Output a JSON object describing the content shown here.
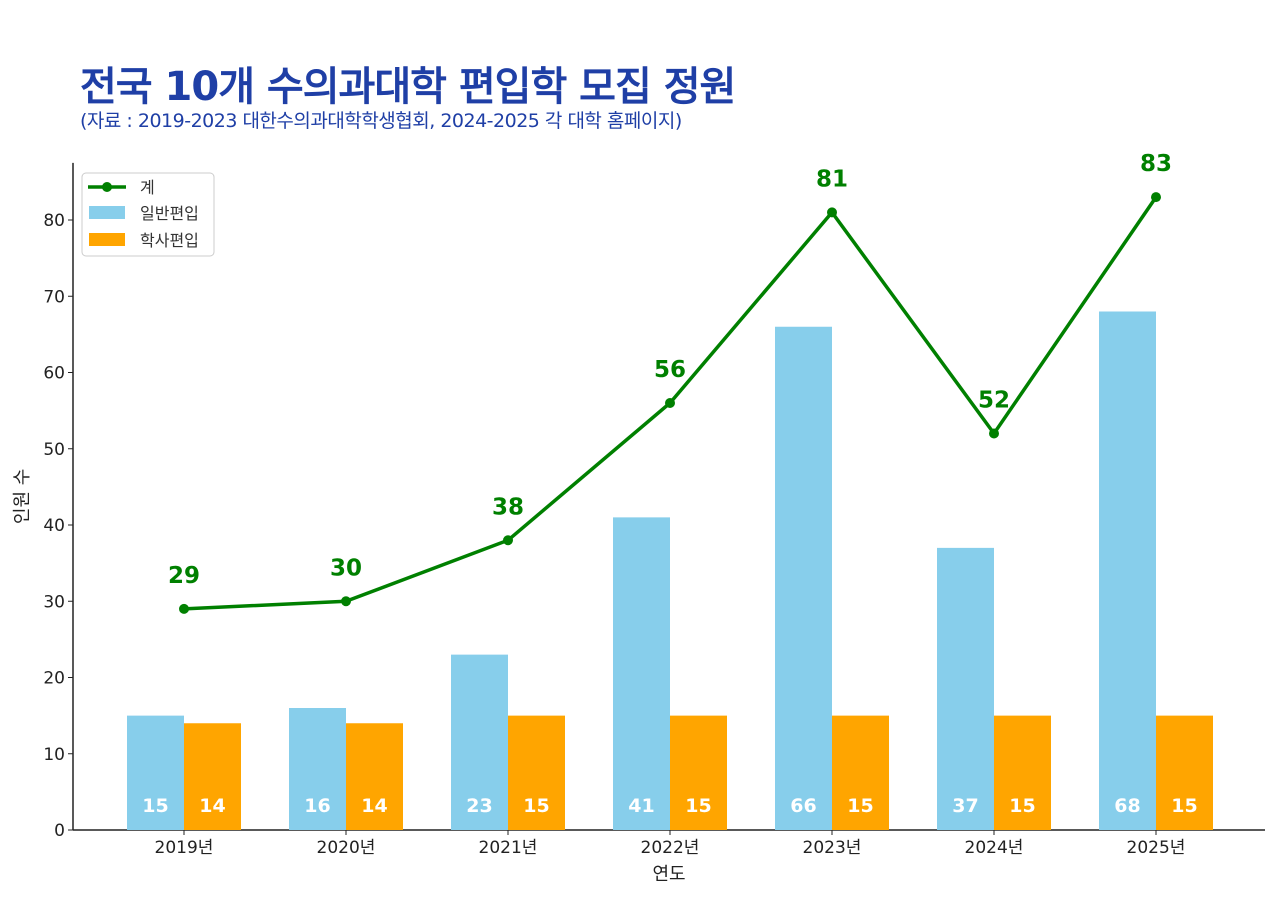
{
  "chart_data": {
    "type": "bar",
    "title": "전국 10개 수의과대학 편입학 모집 정원",
    "subtitle": "(자료 : 2019-2023 대한수의과대학학생협회, 2024-2025 각 대학 홈페이지)",
    "xlabel": "연도",
    "ylabel": "인원 수",
    "categories": [
      "2019년",
      "2020년",
      "2021년",
      "2022년",
      "2023년",
      "2024년",
      "2025년"
    ],
    "series": [
      {
        "name": "일반편입",
        "type": "bar",
        "color": "#87ceeb",
        "values": [
          15,
          16,
          23,
          41,
          66,
          37,
          68
        ]
      },
      {
        "name": "학사편입",
        "type": "bar",
        "color": "#ffa500",
        "values": [
          14,
          14,
          15,
          15,
          15,
          15,
          15
        ]
      },
      {
        "name": "계",
        "type": "line",
        "color": "#008000",
        "values": [
          29,
          30,
          38,
          56,
          81,
          52,
          83
        ]
      }
    ],
    "yticks": [
      0,
      10,
      20,
      30,
      40,
      50,
      60,
      70,
      80
    ],
    "ylim": [
      0,
      87.5
    ],
    "grid": false,
    "legend": "top-left"
  }
}
